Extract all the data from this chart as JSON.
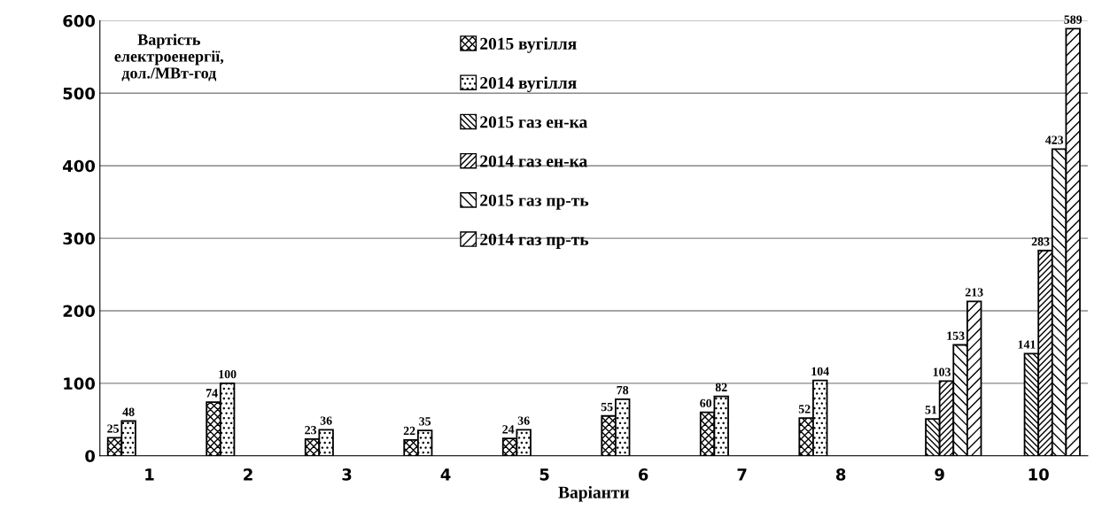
{
  "chart_data": {
    "type": "bar",
    "xlabel": "Варіанти",
    "annotations": [
      "Вартість\nелектроенергії,\nдол./МВт-год"
    ],
    "categories": [
      "1",
      "2",
      "3",
      "4",
      "5",
      "6",
      "7",
      "8",
      "9",
      "10"
    ],
    "series": [
      {
        "name": "2015 вугілля",
        "color": "#000000",
        "values": [
          25,
          74,
          23,
          22,
          24,
          55,
          60,
          52,
          null,
          null
        ]
      },
      {
        "name": "2014 вугілля",
        "color": "#000000",
        "values": [
          48,
          100,
          36,
          35,
          36,
          78,
          82,
          104,
          null,
          null
        ]
      },
      {
        "name": "2015 газ ен-ка",
        "color": "#000000",
        "values": [
          null,
          null,
          null,
          null,
          null,
          null,
          null,
          null,
          51,
          141
        ]
      },
      {
        "name": "2014 газ ен-ка",
        "color": "#000000",
        "values": [
          null,
          null,
          null,
          null,
          null,
          null,
          null,
          null,
          103,
          283
        ]
      },
      {
        "name": "2015 газ пр-ть",
        "color": "#000000",
        "values": [
          null,
          null,
          null,
          null,
          null,
          null,
          null,
          null,
          153,
          423
        ]
      },
      {
        "name": "2014 газ пр-ть",
        "color": "#000000",
        "values": [
          null,
          null,
          null,
          null,
          null,
          null,
          null,
          null,
          213,
          589
        ]
      }
    ],
    "ylim": [
      0,
      600
    ],
    "yticks": [
      0,
      100,
      200,
      300,
      400,
      500,
      600
    ],
    "grid": "y",
    "legend": "top",
    "data_labels": true
  }
}
